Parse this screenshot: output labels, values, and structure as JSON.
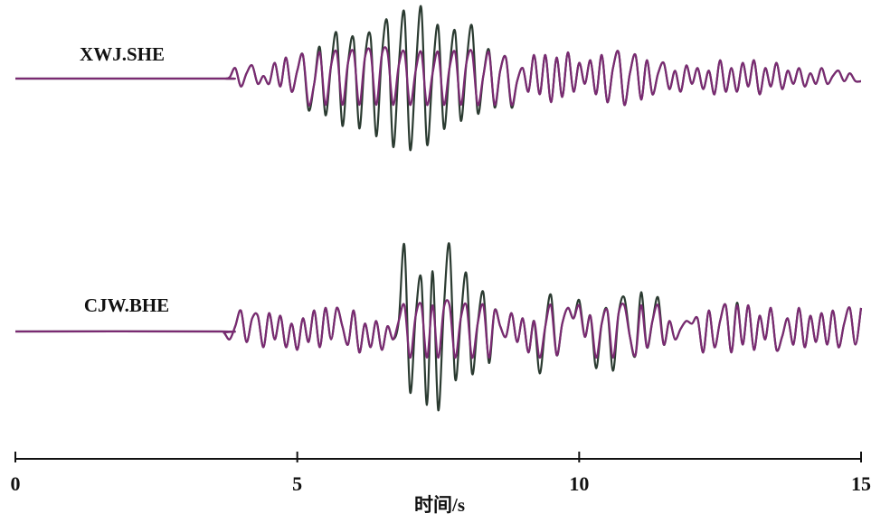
{
  "chart_data": {
    "type": "line",
    "xlabel": "时间/s",
    "xlim": [
      0,
      15
    ],
    "xticks": [
      0,
      5,
      10,
      15
    ],
    "x": [
      0,
      3.6,
      3.7,
      3.8,
      3.9,
      4.0,
      4.1,
      4.2,
      4.3,
      4.4,
      4.5,
      4.6,
      4.7,
      4.8,
      4.9,
      5.0,
      5.1,
      5.2,
      5.3,
      5.4,
      5.5,
      5.6,
      5.7,
      5.8,
      5.9,
      6.0,
      6.1,
      6.2,
      6.3,
      6.4,
      6.5,
      6.6,
      6.7,
      6.8,
      6.9,
      7.0,
      7.1,
      7.2,
      7.3,
      7.4,
      7.5,
      7.6,
      7.7,
      7.8,
      7.9,
      8.0,
      8.1,
      8.2,
      8.3,
      8.4,
      8.5,
      8.6,
      8.7,
      8.8,
      8.9,
      9.0,
      9.1,
      9.2,
      9.3,
      9.4,
      9.5,
      9.6,
      9.7,
      9.8,
      9.9,
      10.0,
      10.1,
      10.2,
      10.3,
      10.4,
      10.5,
      10.6,
      10.7,
      10.8,
      10.9,
      11.0,
      11.1,
      11.2,
      11.3,
      11.4,
      11.5,
      11.6,
      11.7,
      11.8,
      11.9,
      12.0,
      12.1,
      12.2,
      12.3,
      12.4,
      12.5,
      12.6,
      12.7,
      12.8,
      12.9,
      13.0,
      13.1,
      13.2,
      13.3,
      13.4,
      13.5,
      13.6,
      13.7,
      13.8,
      13.9,
      14.0,
      14.1,
      14.2,
      14.3,
      14.4,
      14.5,
      14.6,
      14.7,
      14.8,
      14.9,
      15.0
    ],
    "panels": [
      {
        "label": "XWJ.SHE",
        "ylim": [
          -3,
          3
        ],
        "series": [
          {
            "color": "#2b3b31",
            "values": [
              0,
              0,
              0,
              0.05,
              0.4,
              -0.3,
              0.2,
              0.5,
              -0.2,
              0.1,
              -0.2,
              0.6,
              -0.3,
              0.8,
              -0.5,
              0.3,
              0.9,
              -1.2,
              -0.2,
              1.2,
              -1.4,
              0.5,
              1.7,
              -1.8,
              0.6,
              1.5,
              -1.9,
              0.8,
              1.6,
              -2.2,
              0.9,
              2.1,
              -2.6,
              0.5,
              2.5,
              -2.7,
              0.3,
              2.7,
              -2.5,
              0.2,
              2.0,
              -1.9,
              0.4,
              1.8,
              -1.6,
              0.6,
              2.0,
              -1.3,
              0.1,
              1.1,
              -1.1,
              0.3,
              0.8,
              -1.1,
              -0.1,
              0.4,
              -0.5,
              0.9,
              -0.6,
              0.9,
              -0.9,
              0.8,
              -0.7,
              1.0,
              -0.5,
              0.6,
              -0.2,
              0.7,
              -0.6,
              0.9,
              -0.9,
              0.4,
              1.0,
              -1.0,
              0.2,
              0.9,
              -0.8,
              0.7,
              -0.6,
              0.2,
              0.6,
              -0.4,
              0.3,
              -0.5,
              0.5,
              -0.2,
              0.4,
              -0.4,
              0.3,
              -0.6,
              0.7,
              -0.5,
              0.4,
              -0.5,
              0.6,
              -0.3,
              0.7,
              -0.6,
              0.4,
              -0.3,
              0.6,
              -0.4,
              0.3,
              -0.2,
              0.4,
              -0.3,
              0.2,
              -0.2,
              0.4,
              -0.2,
              0.1,
              0.3,
              -0.1,
              0.2,
              -0.1,
              -0.1
            ]
          },
          {
            "color": "#7a2a72",
            "values": [
              0,
              0,
              0,
              0.05,
              0.4,
              -0.3,
              0.2,
              0.5,
              -0.2,
              0.1,
              -0.2,
              0.6,
              -0.3,
              0.8,
              -0.5,
              0.3,
              0.9,
              -1,
              -0.2,
              1,
              -1,
              0.5,
              1,
              -1,
              0.6,
              1,
              -1,
              0.8,
              1,
              -1,
              0.9,
              1,
              -1,
              0.5,
              1,
              -1,
              0.3,
              1,
              -1,
              0.2,
              1,
              -1,
              0.4,
              1,
              -1,
              0.6,
              1,
              -1,
              0.1,
              1,
              -1,
              0.3,
              0.8,
              -1,
              -0.1,
              0.4,
              -0.5,
              0.9,
              -0.6,
              0.9,
              -0.9,
              0.8,
              -0.7,
              1.0,
              -0.5,
              0.6,
              -0.2,
              0.7,
              -0.6,
              0.9,
              -0.9,
              0.4,
              1.0,
              -1.0,
              0.2,
              0.9,
              -0.8,
              0.7,
              -0.6,
              0.2,
              0.6,
              -0.4,
              0.3,
              -0.5,
              0.5,
              -0.2,
              0.4,
              -0.4,
              0.3,
              -0.6,
              0.7,
              -0.5,
              0.4,
              -0.5,
              0.6,
              -0.3,
              0.7,
              -0.6,
              0.4,
              -0.3,
              0.6,
              -0.4,
              0.3,
              -0.2,
              0.4,
              -0.3,
              0.2,
              -0.2,
              0.4,
              -0.2,
              0.1,
              0.3,
              -0.1,
              0.2,
              -0.1,
              -0.1
            ]
          }
        ]
      },
      {
        "label": "CJW.BHE",
        "ylim": [
          -3,
          3
        ],
        "series": [
          {
            "color": "#2b3b31",
            "values": [
              0,
              0,
              -0.05,
              -0.3,
              0.2,
              0.8,
              -0.4,
              0.5,
              0.6,
              -0.6,
              0.7,
              -0.3,
              0.6,
              -0.6,
              0.3,
              -0.7,
              0.5,
              -0.4,
              0.8,
              -0.6,
              0.9,
              -0.3,
              0.9,
              0.2,
              -0.5,
              0.8,
              -0.8,
              0.3,
              -0.6,
              0.4,
              -0.7,
              0.2,
              -0.3,
              0.4,
              3.3,
              -2.3,
              0.6,
              2.0,
              -2.8,
              2.3,
              -3.0,
              0.9,
              3.3,
              -1.8,
              0.5,
              2.2,
              -1.6,
              0.3,
              1.5,
              -1.2,
              0.8,
              0.2,
              -0.2,
              0.7,
              -0.4,
              0.5,
              -0.8,
              0.4,
              -1.6,
              0.2,
              1.4,
              -0.9,
              0.3,
              0.9,
              0.5,
              1.2,
              -0.2,
              0.6,
              -1.4,
              0.3,
              0.8,
              -1.5,
              0.7,
              1.3,
              -0.2,
              -0.9,
              1.5,
              -0.6,
              0.4,
              1.3,
              -0.5,
              0.4,
              -0.3,
              0.1,
              0.4,
              0.3,
              0.5,
              -0.8,
              0.8,
              -0.6,
              0.4,
              1.0,
              -0.8,
              1.1,
              -0.5,
              1.0,
              -0.7,
              0.6,
              -0.3,
              0.9,
              -0.7,
              -0.2,
              0.5,
              -0.5,
              0.9,
              -0.6,
              0.6,
              -0.4,
              0.7,
              -0.5,
              0.8,
              -0.6,
              0.3,
              0.9,
              -0.5,
              0.9
            ]
          },
          {
            "color": "#7a2a72",
            "values": [
              0,
              0,
              -0.05,
              -0.3,
              0.2,
              0.8,
              -0.4,
              0.5,
              0.6,
              -0.6,
              0.7,
              -0.3,
              0.6,
              -0.6,
              0.3,
              -0.7,
              0.5,
              -0.4,
              0.8,
              -0.6,
              0.9,
              -0.3,
              0.9,
              0.2,
              -0.5,
              0.8,
              -0.8,
              0.3,
              -0.6,
              0.4,
              -0.7,
              0.2,
              -0.3,
              0.4,
              1,
              -1,
              0.6,
              1,
              -1,
              1,
              -1,
              0.9,
              1,
              -1,
              0.5,
              1,
              -1,
              0.3,
              1,
              -1,
              0.8,
              0.2,
              -0.2,
              0.7,
              -0.4,
              0.5,
              -0.8,
              0.4,
              -1,
              0.2,
              1,
              -0.9,
              0.3,
              0.9,
              0.5,
              1,
              -0.2,
              0.6,
              -1,
              0.3,
              0.8,
              -1,
              0.7,
              1,
              -0.2,
              -0.9,
              1,
              -0.6,
              0.4,
              1,
              -0.5,
              0.4,
              -0.3,
              0.1,
              0.4,
              0.3,
              0.5,
              -0.8,
              0.8,
              -0.6,
              0.4,
              1.0,
              -0.8,
              1,
              -0.5,
              1.0,
              -0.7,
              0.6,
              -0.3,
              0.9,
              -0.7,
              -0.2,
              0.5,
              -0.5,
              0.9,
              -0.6,
              0.6,
              -0.4,
              0.7,
              -0.5,
              0.8,
              -0.6,
              0.3,
              0.9,
              -0.5,
              0.9
            ]
          }
        ]
      }
    ]
  }
}
